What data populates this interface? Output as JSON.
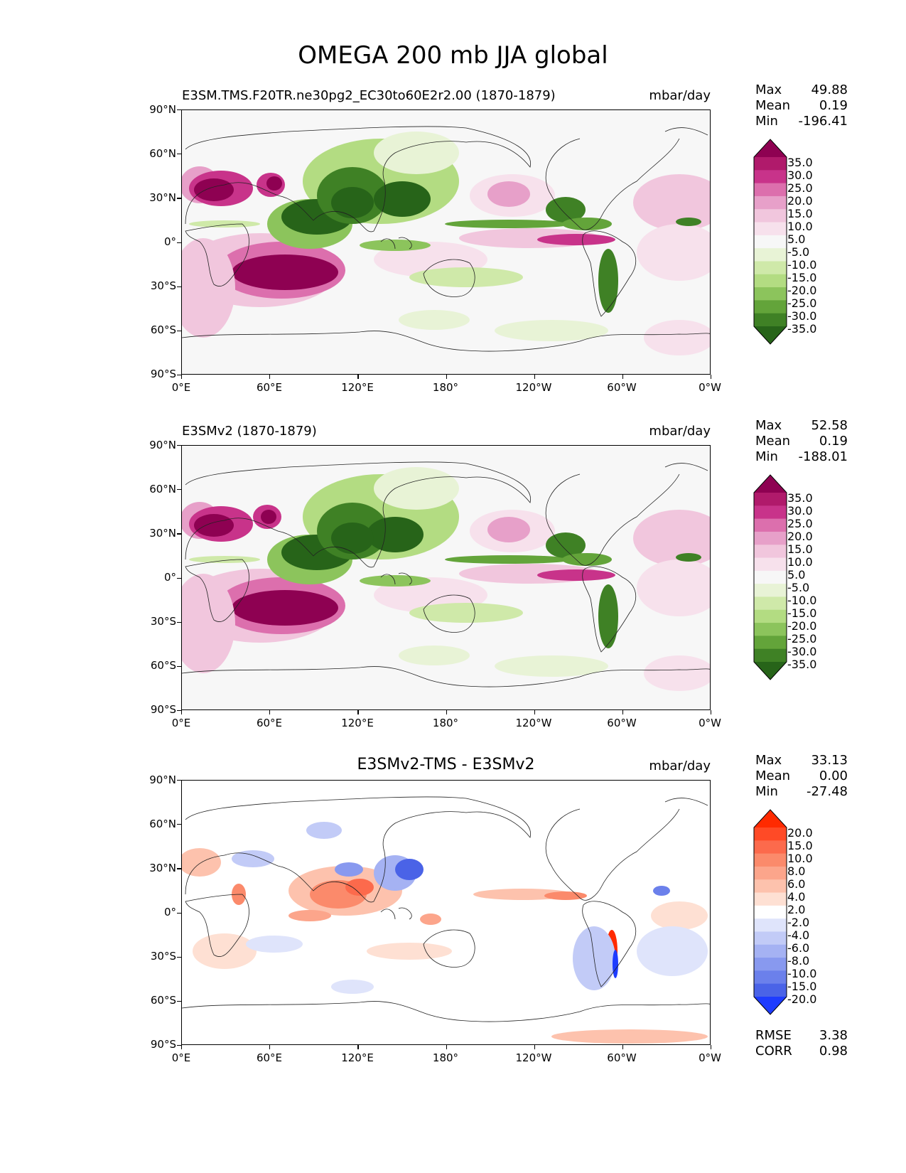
{
  "title": "OMEGA 200 mb JJA global",
  "axes": {
    "lat_ticks": [
      "90°N",
      "60°N",
      "30°N",
      "0°",
      "30°S",
      "60°S",
      "90°S"
    ],
    "lon_ticks": [
      "0°E",
      "60°E",
      "120°E",
      "180°",
      "120°W",
      "60°W",
      "0°W"
    ]
  },
  "panels": [
    {
      "title": "E3SM.TMS.F20TR.ne30pg2_EC30to60E2r2.00 (1870-1879)",
      "units": "mbar/day",
      "stats": [
        {
          "label": "Max",
          "value": "49.88"
        },
        {
          "label": "Mean",
          "value": "0.19"
        },
        {
          "label": "Min",
          "value": "-196.41"
        }
      ],
      "colorbar": {
        "levels": [
          "35.0",
          "30.0",
          "25.0",
          "20.0",
          "15.0",
          "10.0",
          "5.0",
          "-5.0",
          "-10.0",
          "-15.0",
          "-20.0",
          "-25.0",
          "-30.0",
          "-35.0"
        ],
        "colors": [
          "#8e0152",
          "#b01a6b",
          "#c8338a",
          "#dc6fad",
          "#e7a0c9",
          "#f1c6dd",
          "#f7e1ec",
          "#f7f7f7",
          "#e8f3d6",
          "#cfe9a9",
          "#b3dc82",
          "#8cc45c",
          "#63a43a",
          "#3f8125",
          "#276419"
        ]
      }
    },
    {
      "title": "E3SMv2 (1870-1879)",
      "units": "mbar/day",
      "stats": [
        {
          "label": "Max",
          "value": "52.58"
        },
        {
          "label": "Mean",
          "value": "0.19"
        },
        {
          "label": "Min",
          "value": "-188.01"
        }
      ],
      "colorbar": {
        "levels": [
          "35.0",
          "30.0",
          "25.0",
          "20.0",
          "15.0",
          "10.0",
          "5.0",
          "-5.0",
          "-10.0",
          "-15.0",
          "-20.0",
          "-25.0",
          "-30.0",
          "-35.0"
        ],
        "colors": [
          "#8e0152",
          "#b01a6b",
          "#c8338a",
          "#dc6fad",
          "#e7a0c9",
          "#f1c6dd",
          "#f7e1ec",
          "#f7f7f7",
          "#e8f3d6",
          "#cfe9a9",
          "#b3dc82",
          "#8cc45c",
          "#63a43a",
          "#3f8125",
          "#276419"
        ]
      }
    },
    {
      "title": "E3SMv2-TMS - E3SMv2",
      "units": "mbar/day",
      "stats": [
        {
          "label": "Max",
          "value": "33.13"
        },
        {
          "label": "Mean",
          "value": "0.00"
        },
        {
          "label": "Min",
          "value": "-27.48"
        }
      ],
      "colorbar": {
        "levels": [
          "20.0",
          "15.0",
          "10.0",
          "8.0",
          "6.0",
          "4.0",
          "2.0",
          "-2.0",
          "-4.0",
          "-6.0",
          "-8.0",
          "-10.0",
          "-15.0",
          "-20.0"
        ],
        "colors": [
          "#ff2a00",
          "#ff4a26",
          "#fc6a4c",
          "#fb8a6b",
          "#fca58b",
          "#fdc2ad",
          "#fee0d3",
          "#ffffff",
          "#dfe4fb",
          "#c2cbf7",
          "#a5b2f3",
          "#8899ef",
          "#6b80eb",
          "#4a63e7",
          "#1e3cff"
        ]
      },
      "extra_stats": [
        {
          "label": "RMSE",
          "value": "3.38"
        },
        {
          "label": "CORR",
          "value": "0.98"
        }
      ]
    }
  ]
}
